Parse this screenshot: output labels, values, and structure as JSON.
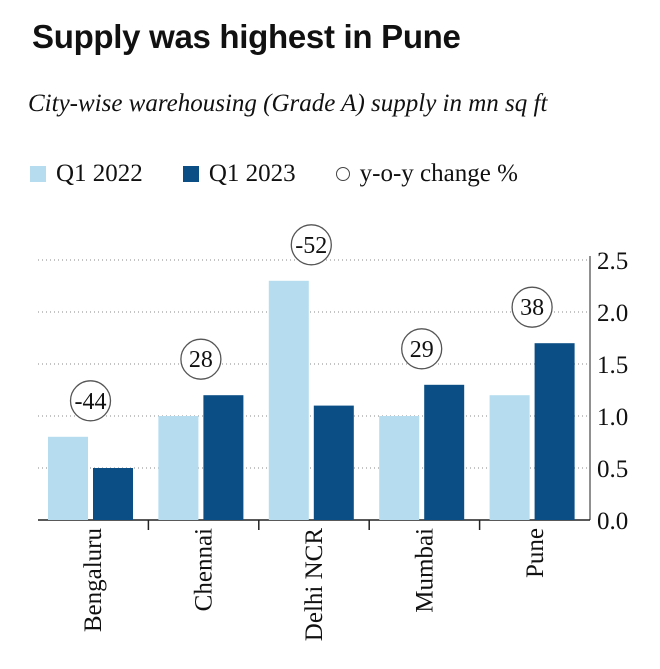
{
  "title": "Supply was highest in Pune",
  "subtitle": "City-wise warehousing (Grade A) supply in mn sq ft",
  "legend": {
    "q1_2022": "Q1 2022",
    "q1_2023": "Q1 2023",
    "yoy": "y-o-y change %"
  },
  "colors": {
    "q1_2022": "#b5ddef",
    "q1_2023": "#0a4e85",
    "grid": "#888888",
    "circle_border": "#555555"
  },
  "chart_data": {
    "type": "bar",
    "categories": [
      "Bengaluru",
      "Chennai",
      "Delhi NCR",
      "Mumbai",
      "Pune"
    ],
    "series": [
      {
        "name": "Q1 2022",
        "values": [
          0.8,
          1.0,
          2.3,
          1.0,
          1.2
        ]
      },
      {
        "name": "Q1 2023",
        "values": [
          0.5,
          1.2,
          1.1,
          1.3,
          1.7
        ]
      }
    ],
    "yoy_change": [
      "-44",
      "28",
      "-52",
      "29",
      "38"
    ],
    "ylim": [
      0,
      2.5
    ],
    "yticks": [
      "0.0",
      "0.5",
      "1.0",
      "1.5",
      "2.0",
      "2.5"
    ],
    "xlabel": "",
    "ylabel": "",
    "grid": true,
    "y_axis_position": "right",
    "legend_position": "top"
  }
}
